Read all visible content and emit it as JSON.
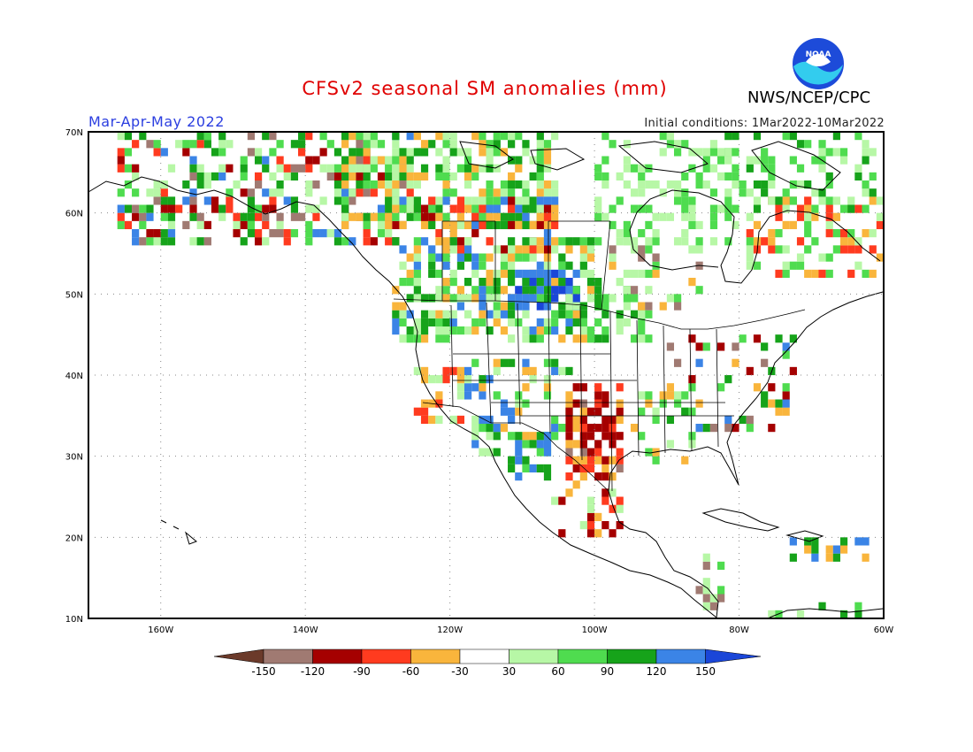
{
  "title": "CFSv2 seasonal SM anomalies (mm)",
  "season": "Mar-Apr-May 2022",
  "initial_conditions": "Initial conditions: 1Mar2022-10Mar2022",
  "agency": "NWS/NCEP/CPC",
  "logo_text": "NOAA",
  "lat_labels": [
    "70N",
    "60N",
    "50N",
    "40N",
    "30N",
    "20N",
    "10N"
  ],
  "lon_labels": [
    "160W",
    "140W",
    "120W",
    "100W",
    "80W",
    "60W"
  ],
  "legend": {
    "labels": [
      "-150",
      "-120",
      "-90",
      "-60",
      "-30",
      "30",
      "60",
      "90",
      "120",
      "150"
    ],
    "colors": [
      "#6b3a2a",
      "#a07a72",
      "#a50000",
      "#ff3b1f",
      "#f9b53c",
      "#ffffff",
      "#b7f7a6",
      "#4fdc4f",
      "#16a31a",
      "#3b84e6",
      "#1a46d8"
    ]
  },
  "colors": {
    "title": "#e00000",
    "season": "#2b3ee0",
    "logo_blue": "#1d4bd9",
    "logo_cyan": "#33ccee"
  }
}
